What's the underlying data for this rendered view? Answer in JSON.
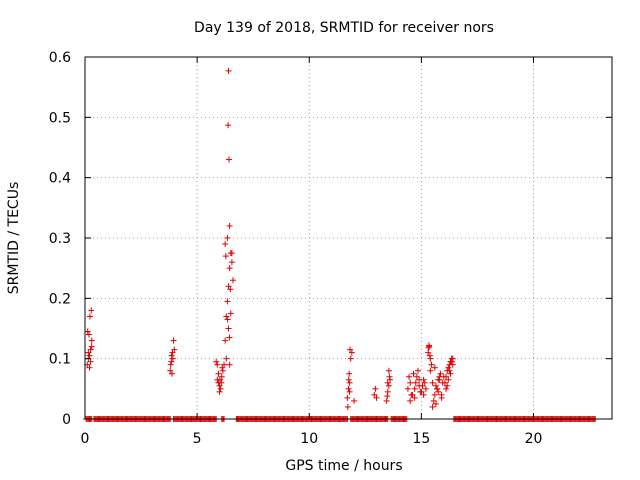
{
  "chart_data": {
    "type": "scatter",
    "title": "Day 139 of 2018, SRMTID for receiver nors",
    "xlabel": "GPS time / hours",
    "ylabel": "SRMTID / TECUs",
    "xlim": [
      0,
      23.5
    ],
    "ylim": [
      0,
      0.6
    ],
    "xticks": [
      0,
      5,
      10,
      15,
      20
    ],
    "yticks": [
      0,
      0.1,
      0.2,
      0.3,
      0.4,
      0.5,
      0.6
    ],
    "grid": true,
    "marker": "+",
    "marker_color": "#e00000",
    "zero_runs": [
      [
        0.05,
        0.3
      ],
      [
        0.4,
        3.8
      ],
      [
        3.95,
        5.85
      ],
      [
        6.1,
        6.2
      ],
      [
        6.75,
        11.7
      ],
      [
        11.85,
        13.5
      ],
      [
        13.65,
        14.35
      ],
      [
        16.45,
        22.75
      ]
    ],
    "series": [
      {
        "x": [
          0.1,
          0.15,
          0.2,
          0.25,
          0.3,
          0.12,
          0.18,
          0.22,
          0.28,
          0.2,
          0.3,
          0.15,
          0.25,
          3.8,
          3.85,
          3.9,
          3.95,
          3.82,
          3.88,
          3.92,
          3.98,
          3.86,
          5.85,
          5.9,
          5.95,
          6.0,
          6.05,
          6.1,
          6.15,
          5.9,
          6.0,
          6.08,
          5.95,
          6.02,
          6.12,
          6.2,
          6.25,
          6.3,
          6.35,
          6.4,
          6.45,
          6.5,
          6.55,
          6.6,
          6.25,
          6.35,
          6.45,
          6.55,
          6.3,
          6.4,
          6.48,
          6.5,
          6.42,
          6.38,
          6.28,
          6.44,
          6.4,
          6.36,
          6.45,
          11.7,
          11.75,
          11.8,
          11.85,
          11.9,
          11.72,
          11.78,
          11.82,
          11.76,
          11.8,
          12.0,
          12.9,
          12.95,
          13.0,
          13.45,
          13.5,
          13.55,
          13.6,
          13.5,
          13.55,
          13.48,
          13.58,
          14.4,
          14.5,
          14.6,
          14.7,
          14.8,
          14.9,
          15.0,
          15.1,
          15.2,
          14.45,
          14.55,
          14.65,
          14.75,
          14.85,
          14.95,
          15.05,
          15.15,
          14.5,
          14.7,
          14.9,
          15.1,
          15.3,
          15.35,
          15.4,
          15.32,
          15.38,
          15.34,
          15.4,
          15.5,
          15.6,
          15.7,
          15.8,
          15.9,
          16.0,
          15.45,
          15.55,
          15.65,
          15.75,
          15.85,
          15.95,
          15.5,
          15.7,
          15.9,
          15.6,
          15.8,
          15.65,
          15.75,
          16.05,
          16.1,
          16.15,
          16.2,
          16.25,
          16.3,
          16.35,
          16.4,
          16.1,
          16.2,
          16.3,
          16.4,
          16.15,
          16.25,
          16.35
        ],
        "y": [
          0.09,
          0.11,
          0.105,
          0.095,
          0.13,
          0.145,
          0.14,
          0.17,
          0.18,
          0.085,
          0.12,
          0.1,
          0.115,
          0.08,
          0.095,
          0.11,
          0.13,
          0.09,
          0.075,
          0.1,
          0.115,
          0.105,
          0.095,
          0.065,
          0.06,
          0.055,
          0.05,
          0.07,
          0.08,
          0.09,
          0.045,
          0.06,
          0.075,
          0.065,
          0.085,
          0.09,
          0.13,
          0.17,
          0.195,
          0.22,
          0.25,
          0.275,
          0.26,
          0.23,
          0.29,
          0.3,
          0.32,
          0.275,
          0.1,
          0.15,
          0.215,
          0.175,
          0.43,
          0.487,
          0.27,
          0.135,
          0.577,
          0.165,
          0.09,
          0.035,
          0.05,
          0.06,
          0.1,
          0.11,
          0.02,
          0.075,
          0.115,
          0.065,
          0.045,
          0.03,
          0.04,
          0.05,
          0.035,
          0.03,
          0.06,
          0.08,
          0.065,
          0.045,
          0.055,
          0.038,
          0.07,
          0.05,
          0.06,
          0.04,
          0.035,
          0.07,
          0.055,
          0.045,
          0.065,
          0.05,
          0.07,
          0.04,
          0.075,
          0.06,
          0.08,
          0.045,
          0.055,
          0.06,
          0.03,
          0.05,
          0.065,
          0.04,
          0.11,
          0.12,
          0.1,
          0.118,
          0.105,
          0.122,
          0.08,
          0.06,
          0.04,
          0.05,
          0.065,
          0.035,
          0.07,
          0.09,
          0.03,
          0.055,
          0.045,
          0.075,
          0.06,
          0.02,
          0.05,
          0.04,
          0.085,
          0.07,
          0.025,
          0.065,
          0.06,
          0.07,
          0.08,
          0.085,
          0.09,
          0.095,
          0.1,
          0.09,
          0.05,
          0.065,
          0.075,
          0.1,
          0.055,
          0.08,
          0.095
        ]
      }
    ]
  }
}
